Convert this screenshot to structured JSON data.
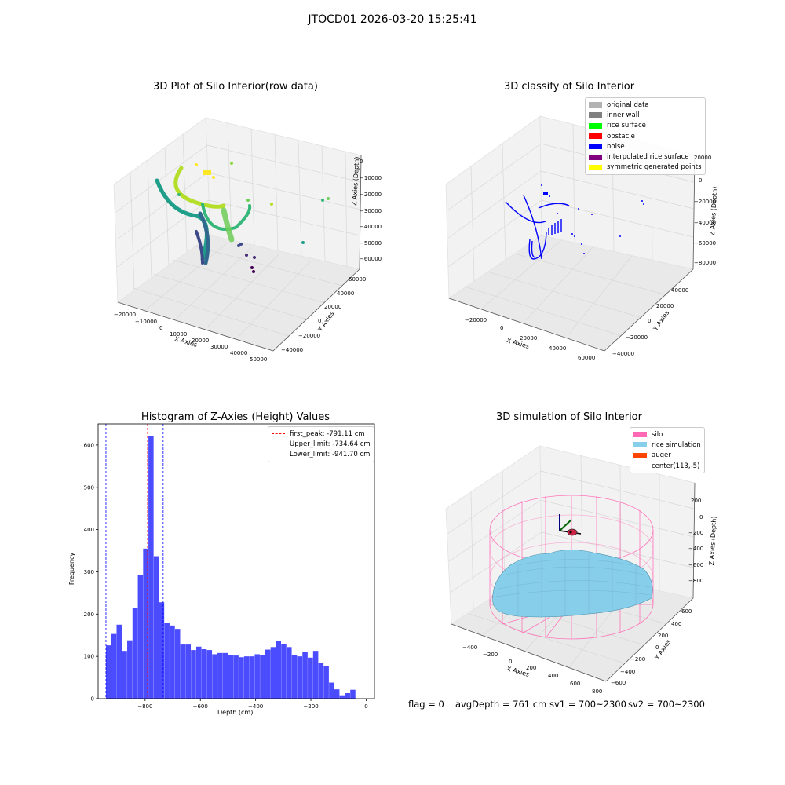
{
  "figure": {
    "suptitle": "JTOCD01 2026-03-20 15:25:41"
  },
  "chart_data": [
    {
      "type": "scatter",
      "subtype": "3d",
      "title": "3D Plot of Silo Interior(row data)",
      "xlabel": "X Axies",
      "ylabel": "Y Axies",
      "zlabel": "Z Axies (Depth)",
      "x_ticks": [
        "−20000",
        "−10000",
        "0",
        "10000",
        "20000",
        "30000",
        "40000",
        "50000"
      ],
      "y_ticks": [
        "−40000",
        "−20000",
        "0",
        "20000",
        "40000",
        "60000"
      ],
      "z_ticks": [
        "0",
        "−10000",
        "−20000",
        "−30000",
        "−40000",
        "−50000",
        "−60000"
      ],
      "colormap": "viridis"
    },
    {
      "type": "scatter",
      "subtype": "3d",
      "title": "3D classify of Silo Interior",
      "xlabel": "X Axies",
      "ylabel": "Y Axies",
      "zlabel": "Z Axies (Depth)",
      "x_ticks": [
        "−20000",
        "0",
        "20000",
        "40000",
        "60000"
      ],
      "y_ticks": [
        "−40000",
        "−20000",
        "0",
        "20000",
        "40000"
      ],
      "z_ticks": [
        "20000",
        "0",
        "−20000",
        "−40000",
        "−60000",
        "−80000"
      ],
      "legend": [
        {
          "label": "original data",
          "color": "#b3b3b3"
        },
        {
          "label": "inner wall",
          "color": "#808080"
        },
        {
          "label": "rice surface",
          "color": "#00ff00"
        },
        {
          "label": "obstacle",
          "color": "#ff0000"
        },
        {
          "label": "noise",
          "color": "#0000ff"
        },
        {
          "label": "interpolated rice surface",
          "color": "#800080"
        },
        {
          "label": "symmetric generated points",
          "color": "#ffff00"
        }
      ],
      "legend_position": "top-right"
    },
    {
      "type": "bar",
      "subtype": "histogram",
      "title": "Histogram of Z-Axies (Height) Values",
      "xlabel": "Depth (cm)",
      "ylabel": "Frequency",
      "xlim": [
        -970,
        30
      ],
      "ylim": [
        0,
        650
      ],
      "x_ticks": [
        -800,
        -600,
        -400,
        -200,
        0
      ],
      "x_tick_labels": [
        "−800",
        "−600",
        "−400",
        "−200",
        "0"
      ],
      "y_ticks": [
        0,
        100,
        200,
        300,
        400,
        500,
        600
      ],
      "bin_start": -941.7,
      "bin_width": 19.22,
      "values": [
        126,
        153,
        175,
        113,
        138,
        215,
        292,
        355,
        622,
        337,
        228,
        180,
        173,
        165,
        128,
        128,
        115,
        123,
        117,
        115,
        105,
        108,
        108,
        103,
        102,
        98,
        100,
        100,
        105,
        103,
        116,
        122,
        137,
        130,
        122,
        104,
        100,
        110,
        97,
        113,
        85,
        78,
        38,
        22,
        8,
        13,
        21
      ],
      "bar_color": "#0000ff",
      "bar_opacity": 0.7,
      "vlines": [
        {
          "label": "first_peak: -791.11 cm",
          "x": -791.11,
          "color": "#ff0000"
        },
        {
          "label": "Upper_limit: -734.64 cm",
          "x": -734.64,
          "color": "#0000ff"
        },
        {
          "label": "Lower_limit: -941.70 cm",
          "x": -941.7,
          "color": "#0000ff"
        }
      ],
      "legend_position": "top-right"
    },
    {
      "type": "surface",
      "subtype": "3d",
      "title": "3D simulation of Silo Interior",
      "xlabel": "X Axies",
      "ylabel": "Y Axies",
      "zlabel": "Z Axies (Depth)",
      "x_ticks": [
        "−400",
        "−200",
        "0",
        "200",
        "400",
        "600",
        "800"
      ],
      "y_ticks": [
        "−600",
        "−400",
        "−200",
        "0",
        "200",
        "400",
        "600"
      ],
      "z_ticks": [
        "200",
        "0",
        "−200",
        "−400",
        "−600",
        "−800"
      ],
      "legend": [
        {
          "label": "silo",
          "color": "#ff69b4"
        },
        {
          "label": "rice simulation",
          "color": "#87ceeb"
        },
        {
          "label": "auger",
          "color": "#ff4500"
        },
        {
          "label": "center(113,-5)",
          "color": ""
        }
      ],
      "legend_position": "top-right"
    }
  ],
  "status": {
    "flag": "flag = 0",
    "avg_depth": "avgDepth = 761 cm",
    "sv1": "sv1 = 700~2300",
    "sv2": "sv2 = 700~2300"
  }
}
